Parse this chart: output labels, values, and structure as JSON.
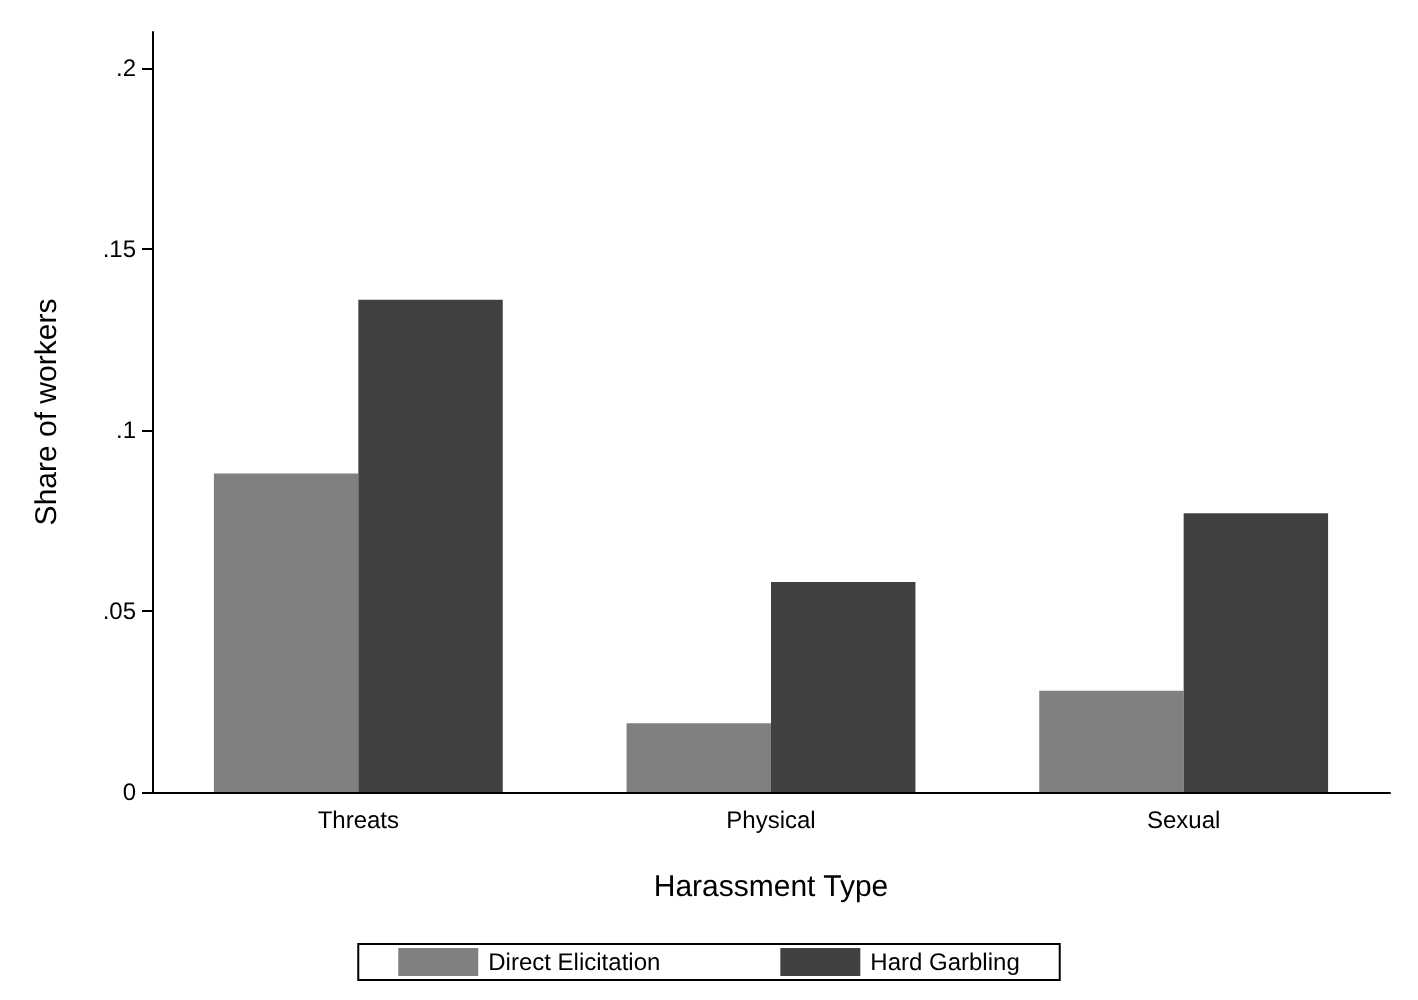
{
  "chart_data": {
    "type": "bar",
    "xlabel": "Harassment Type",
    "ylabel": "Share of workers",
    "categories": [
      "Threats",
      "Physical",
      "Sexual"
    ],
    "series": [
      {
        "name": "Direct Elicitation",
        "color": "#808080",
        "values": [
          0.088,
          0.019,
          0.028
        ]
      },
      {
        "name": "Hard Garbling",
        "color": "#404040",
        "values": [
          0.136,
          0.058,
          0.077
        ]
      }
    ],
    "ylim": [
      0,
      0.21
    ],
    "yticks": [
      {
        "value": 0,
        "label": "0"
      },
      {
        "value": 0.05,
        "label": ".05"
      },
      {
        "value": 0.1,
        "label": ".1"
      },
      {
        "value": 0.15,
        "label": ".15"
      },
      {
        "value": 0.2,
        "label": ".2"
      }
    ],
    "grid": false,
    "legend": "bottom"
  }
}
